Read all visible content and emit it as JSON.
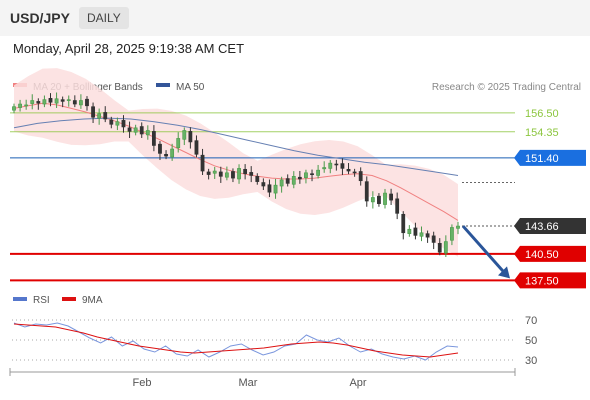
{
  "header": {
    "symbol": "USD/JPY",
    "timeframe": "DAILY"
  },
  "timestamp": "Monday, April 28, 2025 9:19:38 AM CET",
  "legend": {
    "items": [
      {
        "label": "MA 20 + Bollinger Bands",
        "color": "#f08080"
      },
      {
        "label": "MA 50",
        "color": "#335599"
      }
    ],
    "credit": "Research © 2025 Trading Central"
  },
  "rsi_legend": {
    "items": [
      {
        "label": "RSI",
        "color": "#5577cc"
      },
      {
        "label": "9MA",
        "color": "#dd1111"
      }
    ]
  },
  "chart_data": {
    "type": "candlestick",
    "title": "USD/JPY DAILY",
    "x_labels": [
      "Feb",
      "Mar",
      "Apr"
    ],
    "price_ylim": [
      135.5,
      160.0
    ],
    "grid": false,
    "levels": [
      {
        "value": 156.5,
        "label": "156.50",
        "kind": "resistance",
        "color": "#8cc63f"
      },
      {
        "value": 154.35,
        "label": "154.35",
        "kind": "resistance",
        "color": "#8cc63f"
      },
      {
        "value": 151.4,
        "label": "151.40",
        "kind": "pivot",
        "color": "#1a5fb4"
      },
      {
        "value": 143.66,
        "label": "143.66",
        "kind": "last-price",
        "color": "#333333"
      },
      {
        "value": 140.5,
        "label": "140.50",
        "kind": "support",
        "color": "#e00000"
      },
      {
        "value": 137.5,
        "label": "137.50",
        "kind": "support",
        "color": "#e00000"
      }
    ],
    "forecast_arrow": {
      "from": 143.66,
      "to": 137.5,
      "color": "#2a5599"
    },
    "candles_close": [
      157.2,
      157.5,
      157.4,
      157.9,
      157.6,
      158.0,
      157.7,
      158.1,
      157.8,
      158.0,
      157.5,
      157.9,
      157.3,
      156.0,
      156.4,
      155.8,
      155.2,
      155.5,
      154.9,
      154.4,
      154.8,
      154.1,
      154.5,
      152.8,
      151.9,
      151.6,
      152.4,
      153.6,
      154.5,
      153.2,
      151.8,
      149.9,
      149.5,
      149.9,
      149.3,
      149.7,
      149.1,
      150.2,
      149.6,
      149.4,
      148.7,
      148.2,
      147.5,
      148.3,
      148.9,
      148.5,
      149.3,
      149.0,
      149.7,
      149.5,
      150.0,
      150.3,
      150.8,
      150.6,
      150.2,
      149.9,
      149.7,
      148.8,
      146.5,
      146.9,
      146.2,
      147.4,
      146.6,
      145.1,
      142.9,
      143.3,
      142.6,
      142.9,
      142.4,
      141.8,
      140.7,
      141.9,
      143.5,
      143.66
    ],
    "ma20_approx": [
      157.0,
      157.3,
      157.6,
      157.4,
      157.0,
      156.6,
      156.1,
      155.6,
      155.0,
      154.3,
      153.6,
      152.8,
      152.0,
      151.2,
      150.5,
      150.0,
      149.6,
      149.3,
      149.1,
      149.0,
      149.0,
      149.1,
      149.3,
      149.5,
      149.6,
      149.4,
      148.8,
      148.0,
      147.1,
      146.2,
      145.3,
      144.3
    ],
    "ma50_approx": [
      154.8,
      155.3,
      155.6,
      155.8,
      155.9,
      155.8,
      155.5,
      155.1,
      154.6,
      154.0,
      153.4,
      152.8,
      152.2,
      151.7,
      151.3,
      150.9,
      150.6,
      150.2,
      149.8,
      149.4
    ],
    "rsi": {
      "ylim": [
        20,
        80
      ],
      "ticks": [
        70,
        50,
        30
      ],
      "rsi_approx": [
        67,
        63,
        66,
        65,
        67,
        64,
        58,
        52,
        47,
        53,
        44,
        49,
        41,
        38,
        44,
        36,
        34,
        40,
        33,
        38,
        44,
        46,
        40,
        35,
        38,
        44,
        46,
        55,
        50,
        48,
        52,
        44,
        38,
        41,
        36,
        33,
        31,
        34,
        30,
        38,
        44,
        43
      ],
      "ma9_approx": [
        66,
        65,
        64,
        63,
        60,
        57,
        53,
        50,
        47,
        44,
        42,
        40,
        38,
        37,
        38,
        39,
        40,
        41,
        42,
        44,
        46,
        47,
        48,
        47,
        45,
        42,
        39,
        37,
        35,
        34,
        33,
        35,
        37
      ]
    }
  }
}
